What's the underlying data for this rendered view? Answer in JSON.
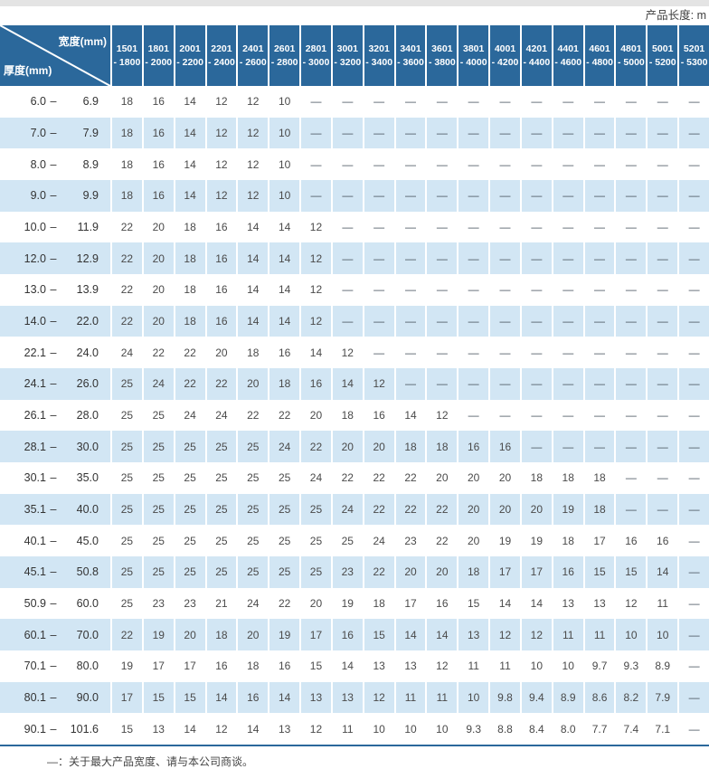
{
  "page": {
    "unit_note": "产品长度: m",
    "footer_note": "—：关于最大产品宽度、请与本公司商谈。"
  },
  "colors": {
    "header_blue": "#2b689b",
    "stripe_blue": "#d2e6f4",
    "border_blue": "#2b689b",
    "topbar_gray": "#e4e4e4",
    "cell_text": "#4a4a4a",
    "label_text": "#333333",
    "dash_text": "#4a5560",
    "note_text": "#444444"
  },
  "table": {
    "corner": {
      "width_label": "宽度(mm)",
      "thickness_label": "厚度(mm)"
    },
    "range_separator": "–",
    "columns": [
      {
        "l1": "1501",
        "l2": "- 1800"
      },
      {
        "l1": "1801",
        "l2": "- 2000"
      },
      {
        "l1": "2001",
        "l2": "- 2200"
      },
      {
        "l1": "2201",
        "l2": "- 2400"
      },
      {
        "l1": "2401",
        "l2": "- 2600"
      },
      {
        "l1": "2601",
        "l2": "- 2800"
      },
      {
        "l1": "2801",
        "l2": "- 3000"
      },
      {
        "l1": "3001",
        "l2": "- 3200"
      },
      {
        "l1": "3201",
        "l2": "- 3400"
      },
      {
        "l1": "3401",
        "l2": "- 3600"
      },
      {
        "l1": "3601",
        "l2": "- 3800"
      },
      {
        "l1": "3801",
        "l2": "- 4000"
      },
      {
        "l1": "4001",
        "l2": "- 4200"
      },
      {
        "l1": "4201",
        "l2": "- 4400"
      },
      {
        "l1": "4401",
        "l2": "- 4600"
      },
      {
        "l1": "4601",
        "l2": "- 4800"
      },
      {
        "l1": "4801",
        "l2": "- 5000"
      },
      {
        "l1": "5001",
        "l2": "- 5200"
      },
      {
        "l1": "5201",
        "l2": "- 5300"
      }
    ],
    "rows": [
      {
        "from": "6.0",
        "to": "6.9",
        "values": [
          "18",
          "16",
          "14",
          "12",
          "12",
          "10",
          "—",
          "—",
          "—",
          "—",
          "—",
          "—",
          "—",
          "—",
          "—",
          "—",
          "—",
          "—",
          "—"
        ]
      },
      {
        "from": "7.0",
        "to": "7.9",
        "values": [
          "18",
          "16",
          "14",
          "12",
          "12",
          "10",
          "—",
          "—",
          "—",
          "—",
          "—",
          "—",
          "—",
          "—",
          "—",
          "—",
          "—",
          "—",
          "—"
        ]
      },
      {
        "from": "8.0",
        "to": "8.9",
        "values": [
          "18",
          "16",
          "14",
          "12",
          "12",
          "10",
          "—",
          "—",
          "—",
          "—",
          "—",
          "—",
          "—",
          "—",
          "—",
          "—",
          "—",
          "—",
          "—"
        ]
      },
      {
        "from": "9.0",
        "to": "9.9",
        "values": [
          "18",
          "16",
          "14",
          "12",
          "12",
          "10",
          "—",
          "—",
          "—",
          "—",
          "—",
          "—",
          "—",
          "—",
          "—",
          "—",
          "—",
          "—",
          "—"
        ]
      },
      {
        "from": "10.0",
        "to": "11.9",
        "values": [
          "22",
          "20",
          "18",
          "16",
          "14",
          "14",
          "12",
          "—",
          "—",
          "—",
          "—",
          "—",
          "—",
          "—",
          "—",
          "—",
          "—",
          "—",
          "—"
        ]
      },
      {
        "from": "12.0",
        "to": "12.9",
        "values": [
          "22",
          "20",
          "18",
          "16",
          "14",
          "14",
          "12",
          "—",
          "—",
          "—",
          "—",
          "—",
          "—",
          "—",
          "—",
          "—",
          "—",
          "—",
          "—"
        ]
      },
      {
        "from": "13.0",
        "to": "13.9",
        "values": [
          "22",
          "20",
          "18",
          "16",
          "14",
          "14",
          "12",
          "—",
          "—",
          "—",
          "—",
          "—",
          "—",
          "—",
          "—",
          "—",
          "—",
          "—",
          "—"
        ]
      },
      {
        "from": "14.0",
        "to": "22.0",
        "values": [
          "22",
          "20",
          "18",
          "16",
          "14",
          "14",
          "12",
          "—",
          "—",
          "—",
          "—",
          "—",
          "—",
          "—",
          "—",
          "—",
          "—",
          "—",
          "—"
        ]
      },
      {
        "from": "22.1",
        "to": "24.0",
        "values": [
          "24",
          "22",
          "22",
          "20",
          "18",
          "16",
          "14",
          "12",
          "—",
          "—",
          "—",
          "—",
          "—",
          "—",
          "—",
          "—",
          "—",
          "—",
          "—"
        ]
      },
      {
        "from": "24.1",
        "to": "26.0",
        "values": [
          "25",
          "24",
          "22",
          "22",
          "20",
          "18",
          "16",
          "14",
          "12",
          "—",
          "—",
          "—",
          "—",
          "—",
          "—",
          "—",
          "—",
          "—",
          "—"
        ]
      },
      {
        "from": "26.1",
        "to": "28.0",
        "values": [
          "25",
          "25",
          "24",
          "24",
          "22",
          "22",
          "20",
          "18",
          "16",
          "14",
          "12",
          "—",
          "—",
          "—",
          "—",
          "—",
          "—",
          "—",
          "—"
        ]
      },
      {
        "from": "28.1",
        "to": "30.0",
        "values": [
          "25",
          "25",
          "25",
          "25",
          "25",
          "24",
          "22",
          "20",
          "20",
          "18",
          "18",
          "16",
          "16",
          "—",
          "—",
          "—",
          "—",
          "—",
          "—"
        ]
      },
      {
        "from": "30.1",
        "to": "35.0",
        "values": [
          "25",
          "25",
          "25",
          "25",
          "25",
          "25",
          "24",
          "22",
          "22",
          "22",
          "20",
          "20",
          "20",
          "18",
          "18",
          "18",
          "—",
          "—",
          "—"
        ]
      },
      {
        "from": "35.1",
        "to": "40.0",
        "values": [
          "25",
          "25",
          "25",
          "25",
          "25",
          "25",
          "25",
          "24",
          "22",
          "22",
          "22",
          "20",
          "20",
          "20",
          "19",
          "18",
          "—",
          "—",
          "—"
        ]
      },
      {
        "from": "40.1",
        "to": "45.0",
        "values": [
          "25",
          "25",
          "25",
          "25",
          "25",
          "25",
          "25",
          "25",
          "24",
          "23",
          "22",
          "20",
          "19",
          "19",
          "18",
          "17",
          "16",
          "16",
          "—"
        ]
      },
      {
        "from": "45.1",
        "to": "50.8",
        "values": [
          "25",
          "25",
          "25",
          "25",
          "25",
          "25",
          "25",
          "23",
          "22",
          "20",
          "20",
          "18",
          "17",
          "17",
          "16",
          "15",
          "15",
          "14",
          "—"
        ]
      },
      {
        "from": "50.9",
        "to": "60.0",
        "values": [
          "25",
          "23",
          "23",
          "21",
          "24",
          "22",
          "20",
          "19",
          "18",
          "17",
          "16",
          "15",
          "14",
          "14",
          "13",
          "13",
          "12",
          "11",
          "—"
        ]
      },
      {
        "from": "60.1",
        "to": "70.0",
        "values": [
          "22",
          "19",
          "20",
          "18",
          "20",
          "19",
          "17",
          "16",
          "15",
          "14",
          "14",
          "13",
          "12",
          "12",
          "11",
          "11",
          "10",
          "10",
          "—"
        ]
      },
      {
        "from": "70.1",
        "to": "80.0",
        "values": [
          "19",
          "17",
          "17",
          "16",
          "18",
          "16",
          "15",
          "14",
          "13",
          "13",
          "12",
          "11",
          "11",
          "10",
          "10",
          "9.7",
          "9.3",
          "8.9",
          "—"
        ]
      },
      {
        "from": "80.1",
        "to": "90.0",
        "values": [
          "17",
          "15",
          "15",
          "14",
          "16",
          "14",
          "13",
          "13",
          "12",
          "11",
          "11",
          "10",
          "9.8",
          "9.4",
          "8.9",
          "8.6",
          "8.2",
          "7.9",
          "—"
        ]
      },
      {
        "from": "90.1",
        "to": "101.6",
        "values": [
          "15",
          "13",
          "14",
          "12",
          "14",
          "13",
          "12",
          "11",
          "10",
          "10",
          "10",
          "9.3",
          "8.8",
          "8.4",
          "8.0",
          "7.7",
          "7.4",
          "7.1",
          "—"
        ]
      }
    ]
  }
}
